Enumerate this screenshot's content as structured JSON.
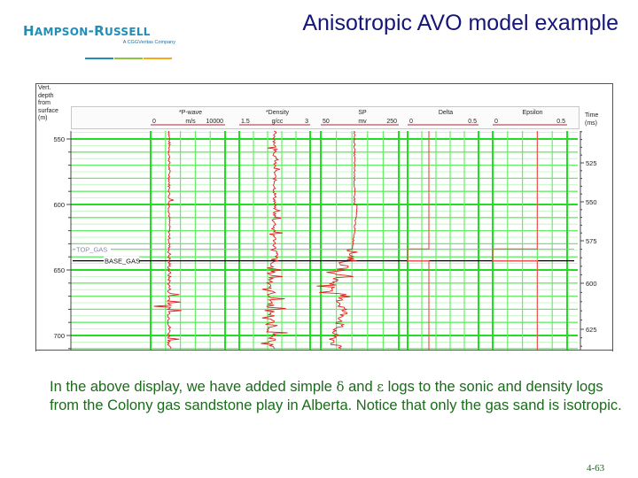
{
  "slide": {
    "title": "Anisotropic AVO model example",
    "page_number": "4-63",
    "logo": {
      "name_big_1": "H",
      "name_small_1": "AMPSON",
      "dash": "-",
      "name_big_2": "R",
      "name_small_2": "USSELL",
      "subtitle": "A CGGVeritas Company",
      "bar_colors": [
        "#1f8fb8",
        "#8cc63f",
        "#f7a81b"
      ]
    },
    "caption": {
      "part1": "In the above display, we have added simple ",
      "delta": "δ",
      "part2": " and ",
      "epsilon": "ε",
      "part3": " logs to the sonic and density logs from the Colony gas sandstone play in Alberta. Notice that only the gas sand is isotropic."
    }
  },
  "log_display": {
    "depth_axis_label": [
      "Vert.",
      "depth",
      "from",
      "surface",
      "(m)"
    ],
    "time_axis_label": [
      "Time",
      "(ms)"
    ],
    "markers": [
      {
        "name": "TOP_GAS",
        "depth": 634,
        "color": "#a8a8c8"
      },
      {
        "name": "BASE_GAS",
        "depth": 643,
        "color": "#000000"
      }
    ]
  },
  "chart_data": {
    "type": "line",
    "title": "Anisotropic AVO model example",
    "y_axis": {
      "label": "Vert. depth from surface (m)",
      "range": [
        544,
        712
      ],
      "ticks": [
        550,
        600,
        650,
        700
      ],
      "inverted": true
    },
    "secondary_y_axis": {
      "label": "Time (ms)",
      "ticks": [
        525,
        550,
        575,
        600,
        625
      ]
    },
    "grid": true,
    "tracks": [
      {
        "name": "*P-wave",
        "unit": "m/s",
        "min": "0",
        "max": "10000",
        "color": "#e02020"
      },
      {
        "name": "*Density",
        "unit": "g/cc",
        "min": "1.5",
        "max": "3",
        "color": "#e02020"
      },
      {
        "name": "SP",
        "unit": "mv",
        "min": "50",
        "max": "250",
        "color": "#e02020"
      },
      {
        "name": "Delta",
        "unit": "",
        "min": "0",
        "max": "0.5",
        "color": "#e02020",
        "values": [
          {
            "depth_range": [
              544,
              634
            ],
            "value": 0.15
          },
          {
            "depth_range": [
              634,
              643
            ],
            "value": 0.0
          },
          {
            "depth_range": [
              643,
              712
            ],
            "value": 0.15
          }
        ]
      },
      {
        "name": "Epsilon",
        "unit": "",
        "min": "0",
        "max": "0.5",
        "color": "#e02020",
        "values": [
          {
            "depth_range": [
              544,
              634
            ],
            "value": 0.3
          },
          {
            "depth_range": [
              634,
              643
            ],
            "value": 0.0
          },
          {
            "depth_range": [
              643,
              712
            ],
            "value": 0.3
          }
        ]
      }
    ],
    "annotations": [
      "TOP_GAS",
      "BASE_GAS"
    ]
  }
}
